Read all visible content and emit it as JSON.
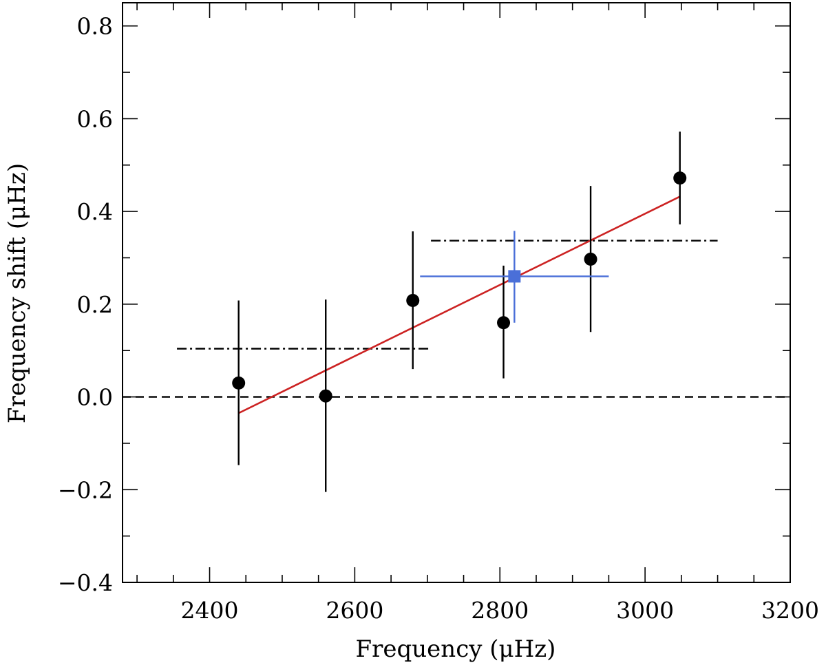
{
  "chart_data": {
    "type": "scatter",
    "title": "",
    "xlabel": "Frequency (μHz)",
    "ylabel": "Frequency shift (μHz)",
    "xlim": [
      2280,
      3200
    ],
    "ylim": [
      -0.4,
      0.85
    ],
    "xticks": [
      2400,
      2600,
      2800,
      3000,
      3200
    ],
    "xtick_labels": [
      "2400",
      "2600",
      "2800",
      "3000",
      "3200"
    ],
    "xminor_step": 50,
    "yticks": [
      -0.4,
      -0.2,
      0.0,
      0.2,
      0.4,
      0.6,
      0.8
    ],
    "ytick_labels": [
      "−0.4",
      "−0.2",
      "0.0",
      "0.2",
      "0.4",
      "0.6",
      "0.8"
    ],
    "yminor_step": 0.1,
    "grid": false,
    "legend": "none",
    "points": [
      {
        "x": 2440,
        "y": 0.03,
        "ylo": -0.147,
        "yhi": 0.208
      },
      {
        "x": 2560,
        "y": 0.002,
        "ylo": -0.205,
        "yhi": 0.21
      },
      {
        "x": 2680,
        "y": 0.208,
        "ylo": 0.06,
        "yhi": 0.357
      },
      {
        "x": 2805,
        "y": 0.16,
        "ylo": 0.04,
        "yhi": 0.283
      },
      {
        "x": 2925,
        "y": 0.297,
        "ylo": 0.14,
        "yhi": 0.455
      },
      {
        "x": 3048,
        "y": 0.472,
        "ylo": 0.372,
        "yhi": 0.572
      }
    ],
    "points_color": "#000000",
    "mean_point": {
      "x": 2820,
      "y": 0.26,
      "xlo": 2690,
      "xhi": 2950,
      "ylo": 0.16,
      "yhi": 0.358,
      "color": "#4a6fd8"
    },
    "fit_line": {
      "x": [
        2440,
        3048
      ],
      "y": [
        -0.035,
        0.432
      ],
      "color": "#cc2222"
    },
    "reference_lines": [
      {
        "x": [
          2280,
          3200
        ],
        "y": 0.0,
        "style": "dashed"
      },
      {
        "x": [
          2355,
          2705
        ],
        "y": 0.104,
        "style": "dash-dot"
      },
      {
        "x": [
          2705,
          3100
        ],
        "y": 0.337,
        "style": "dash-dot"
      }
    ]
  }
}
